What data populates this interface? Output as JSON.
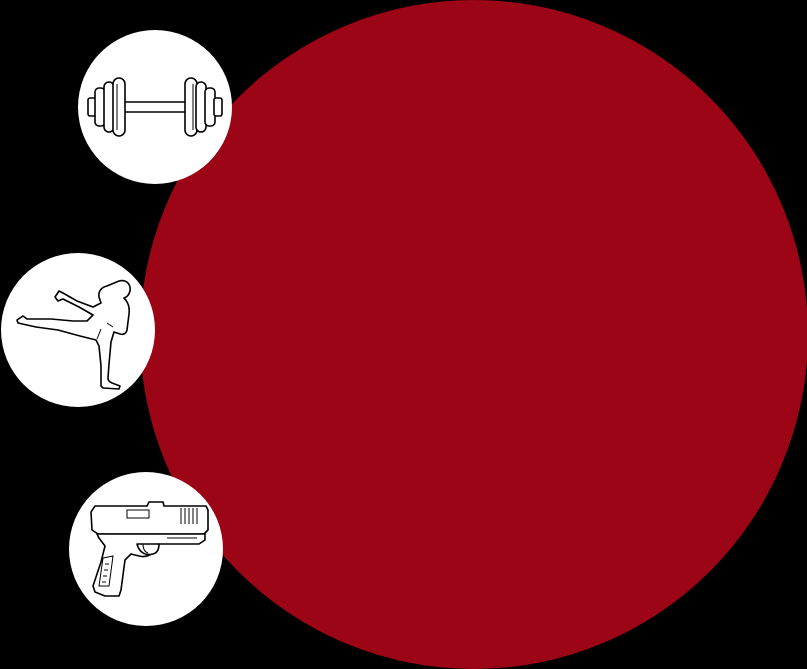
{
  "colors": {
    "background": "#000000",
    "main_circle": "#9b0515",
    "icon_circle": "#ffffff",
    "icon_stroke": "#000000"
  },
  "menu": {
    "items": [
      {
        "id": "gym",
        "icon": "dumbbell-icon"
      },
      {
        "id": "martial-arts",
        "icon": "martial-arts-kick-icon"
      },
      {
        "id": "firearms",
        "icon": "pistol-icon"
      }
    ]
  }
}
